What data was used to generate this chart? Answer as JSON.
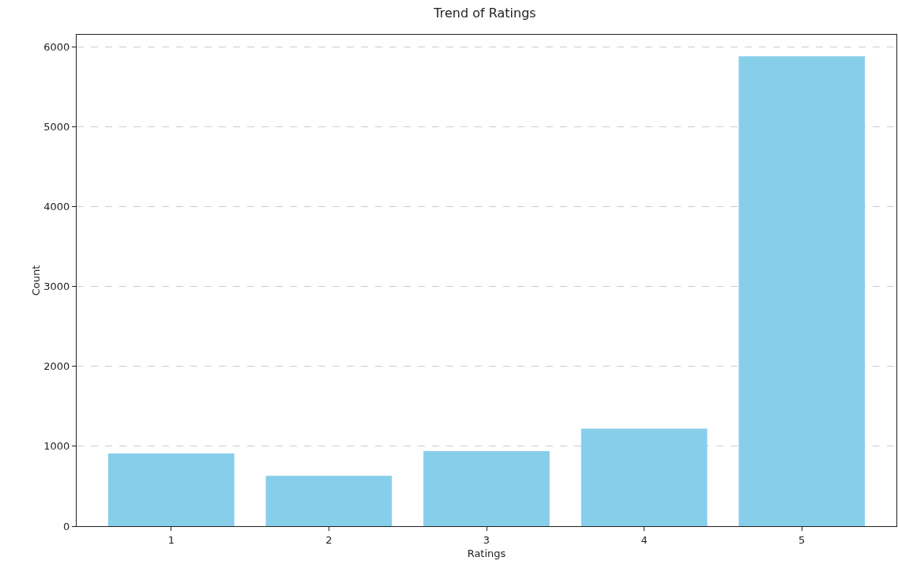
{
  "chart_data": {
    "type": "bar",
    "title": "Trend of Ratings",
    "xlabel": "Ratings",
    "ylabel": "Count",
    "categories": [
      "1",
      "2",
      "3",
      "4",
      "5"
    ],
    "values": [
      910,
      630,
      940,
      1220,
      5880
    ],
    "color": "#87ceeb",
    "ylim": [
      0,
      6150
    ],
    "yticks": [
      0,
      1000,
      2000,
      3000,
      4000,
      5000,
      6000
    ],
    "grid": "y"
  }
}
